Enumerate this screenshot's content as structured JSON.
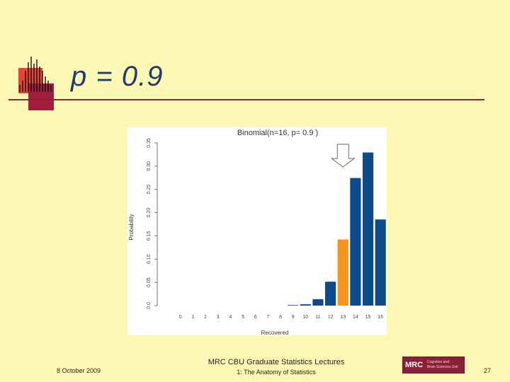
{
  "slide": {
    "title": "p = 0.9",
    "footer_date": "8 October 2009",
    "footer_line1": "MRC CBU Graduate Statistics Lectures",
    "footer_line2": "1: The Anatomy of Statistics",
    "page_number": "27",
    "logo_text": "MRC",
    "logo_subtext_line1": "Cognition and",
    "logo_subtext_line2": "Brain Sciences Unit"
  },
  "colors": {
    "bar": "#0d4a8a",
    "highlight": "#f7941d",
    "background": "#fdf8b3",
    "accent": "#8b1f3a"
  },
  "chart_data": {
    "type": "bar",
    "title": "Binomial(n=16, p= 0.9 )",
    "xlabel": "Recovered",
    "ylabel": "Probability",
    "categories": [
      "0",
      "1",
      "2",
      "3",
      "4",
      "5",
      "6",
      "7",
      "8",
      "9",
      "10",
      "11",
      "12",
      "13",
      "14",
      "15",
      "16"
    ],
    "values": [
      0,
      0,
      0,
      0,
      0,
      0,
      0,
      0,
      0,
      0.0004,
      0.0028,
      0.0137,
      0.0514,
      0.1423,
      0.2745,
      0.3294,
      0.1853
    ],
    "highlight_index": 13,
    "ylim": [
      0,
      0.35
    ],
    "yticks": [
      "0.0",
      "0.05",
      "0.10",
      "0.15",
      "0.20",
      "0.25",
      "0.30",
      "0.35"
    ],
    "ytick_values": [
      0,
      0.05,
      0.1,
      0.15,
      0.2,
      0.25,
      0.3,
      0.35
    ],
    "grid": false,
    "arrow_marker_index": 13
  }
}
